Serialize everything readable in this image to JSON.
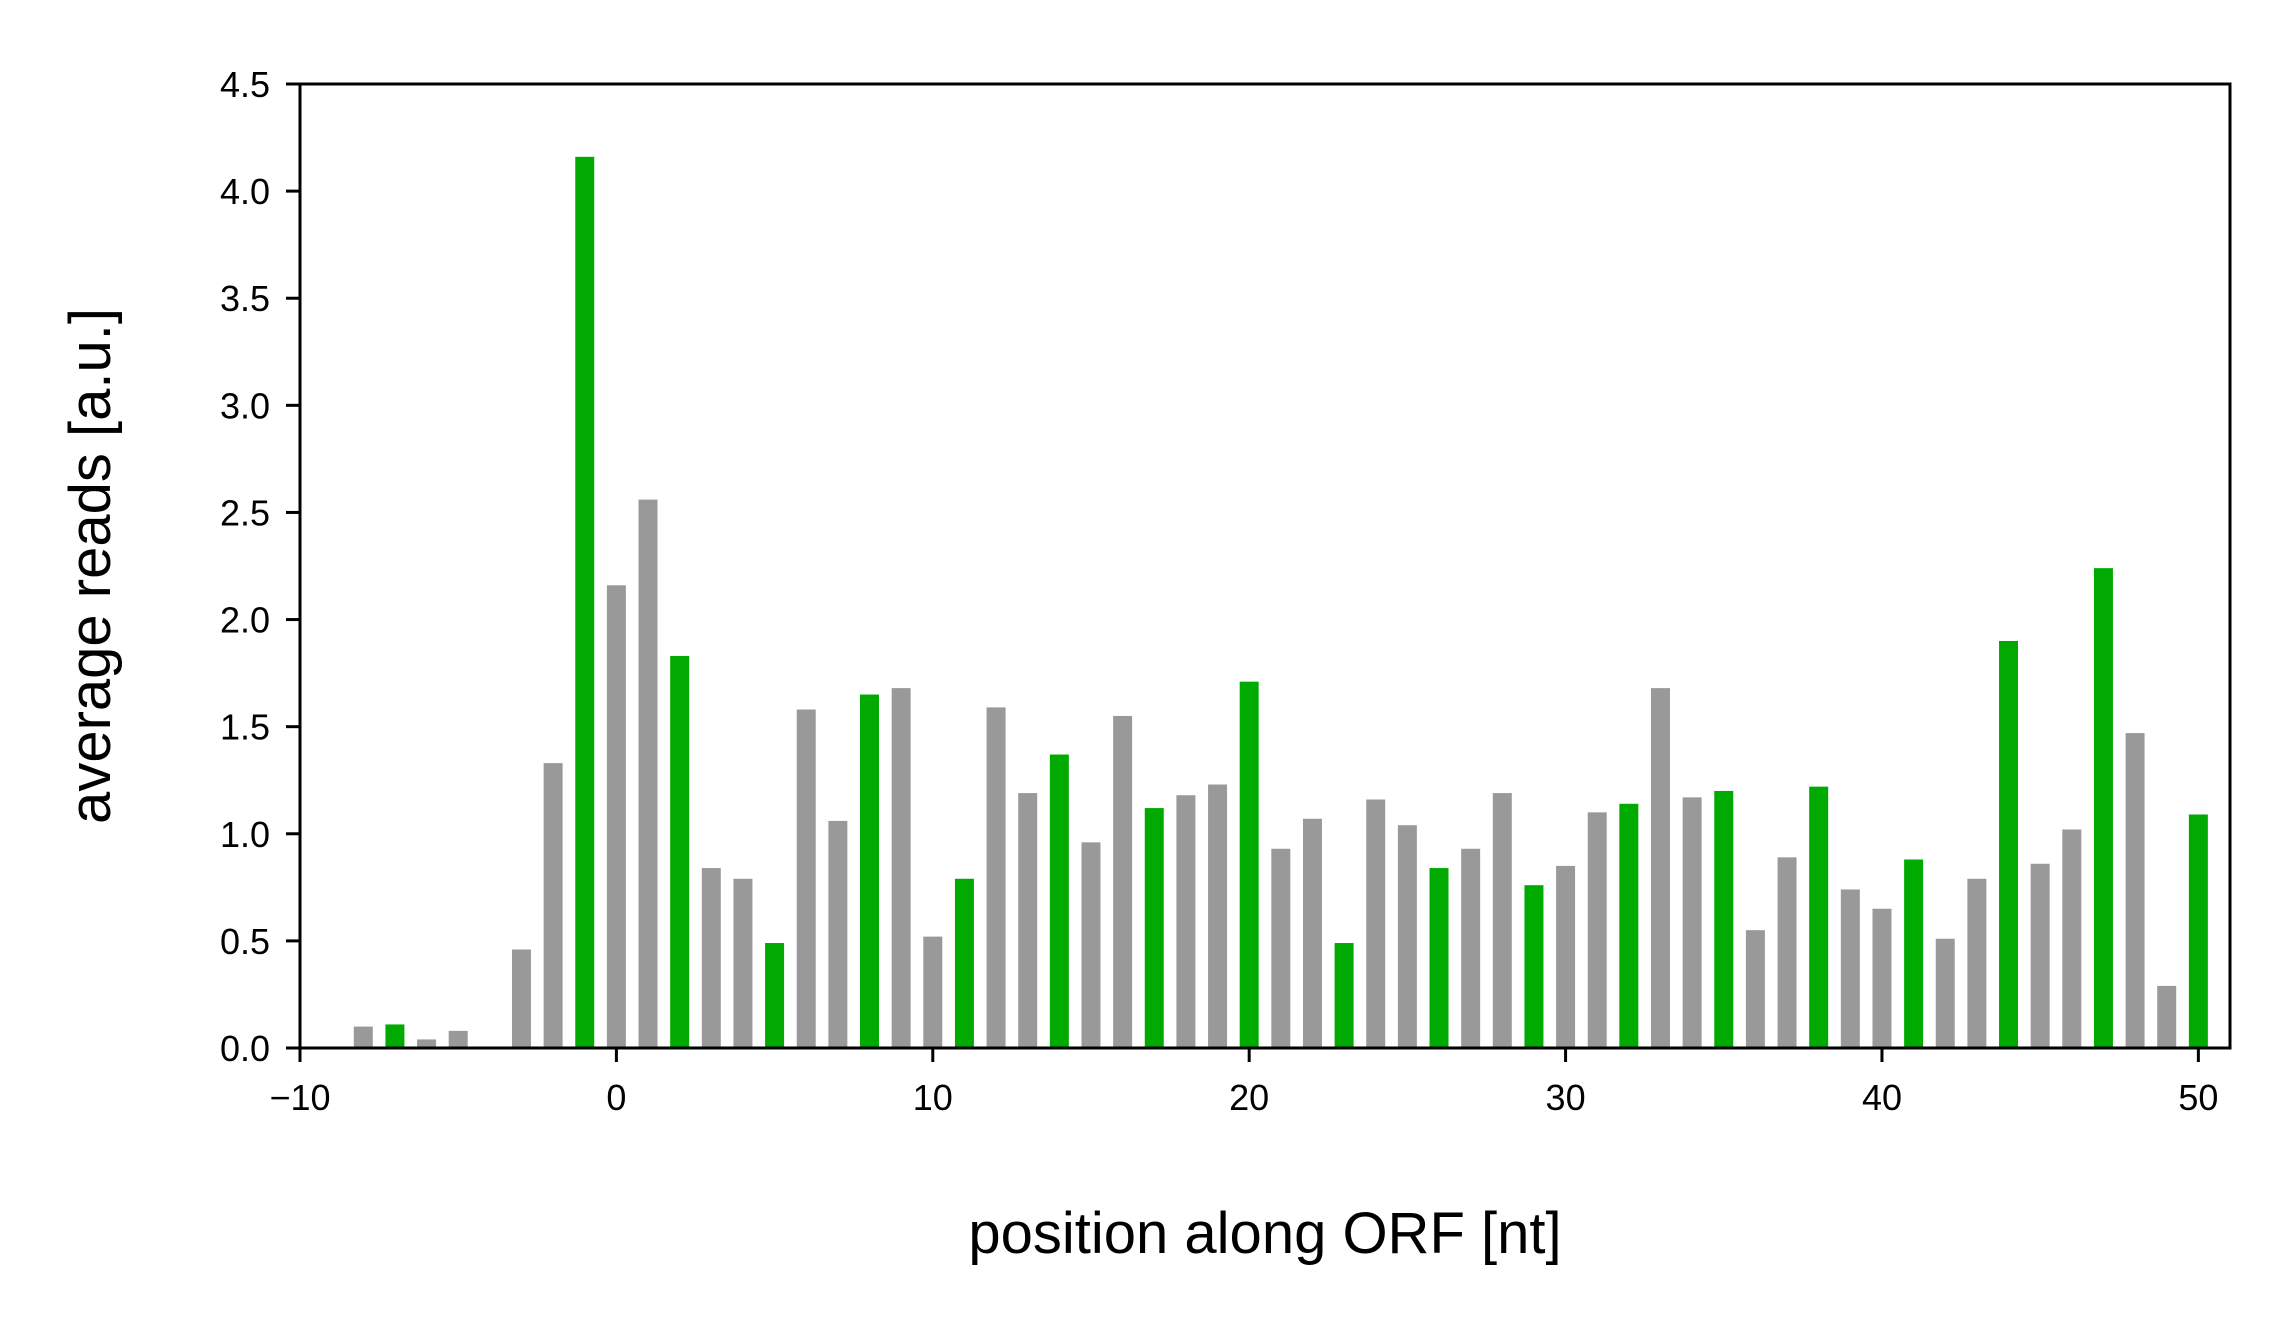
{
  "chart_data": {
    "type": "bar",
    "xlabel": "position along ORF [nt]",
    "ylabel": "average reads [a.u.]",
    "xlim": [
      -10,
      51
    ],
    "ylim": [
      0,
      4.5
    ],
    "xticks": [
      -10,
      0,
      10,
      20,
      30,
      40,
      50
    ],
    "xtick_labels": [
      "−10",
      "0",
      "10",
      "20",
      "30",
      "40",
      "50"
    ],
    "yticks": [
      0,
      0.5,
      1,
      1.5,
      2,
      2.5,
      3,
      3.5,
      4,
      4.5
    ],
    "ytick_labels": [
      "0.0",
      "0.5",
      "1.0",
      "1.5",
      "2.0",
      "2.5",
      "3.0",
      "3.5",
      "4.0",
      "4.5"
    ],
    "grid": false,
    "colors": {
      "frame0": "#00aa00",
      "other": "#999999"
    },
    "x": [
      -8,
      -7,
      -6,
      -5,
      -4,
      -3,
      -2,
      -1,
      0,
      1,
      2,
      3,
      4,
      5,
      6,
      7,
      8,
      9,
      10,
      11,
      12,
      13,
      14,
      15,
      16,
      17,
      18,
      19,
      20,
      21,
      22,
      23,
      24,
      25,
      26,
      27,
      28,
      29,
      30,
      31,
      32,
      33,
      34,
      35,
      36,
      37,
      38,
      39,
      40,
      41,
      42,
      43,
      44,
      45,
      46,
      47,
      48,
      49,
      50
    ],
    "values": [
      0.1,
      0.11,
      0.04,
      0.08,
      0.0,
      0.46,
      1.33,
      4.16,
      2.16,
      2.56,
      1.83,
      0.84,
      0.79,
      0.49,
      1.58,
      1.06,
      1.65,
      1.68,
      0.52,
      0.79,
      1.59,
      1.19,
      1.37,
      0.96,
      1.55,
      1.12,
      1.18,
      1.23,
      1.71,
      0.93,
      1.07,
      0.49,
      1.16,
      1.04,
      0.84,
      0.93,
      1.19,
      0.76,
      0.85,
      1.1,
      1.14,
      1.68,
      1.17,
      1.2,
      0.55,
      0.89,
      1.22,
      0.74,
      0.65,
      0.88,
      0.51,
      0.79,
      1.9,
      0.86,
      1.02,
      2.24,
      1.47,
      0.29,
      1.09
    ],
    "bar_colors": [
      "other",
      "frame0",
      "other",
      "other",
      "frame0",
      "other",
      "other",
      "frame0",
      "other",
      "other",
      "frame0",
      "other",
      "other",
      "frame0",
      "other",
      "other",
      "frame0",
      "other",
      "other",
      "frame0",
      "other",
      "other",
      "frame0",
      "other",
      "other",
      "frame0",
      "other",
      "other",
      "frame0",
      "other",
      "other",
      "frame0",
      "other",
      "other",
      "frame0",
      "other",
      "other",
      "frame0",
      "other",
      "other",
      "frame0",
      "other",
      "other",
      "frame0",
      "other",
      "other",
      "frame0",
      "other",
      "other",
      "frame0",
      "other",
      "other",
      "frame0",
      "other",
      "other",
      "frame0",
      "other",
      "other",
      "frame0"
    ]
  }
}
